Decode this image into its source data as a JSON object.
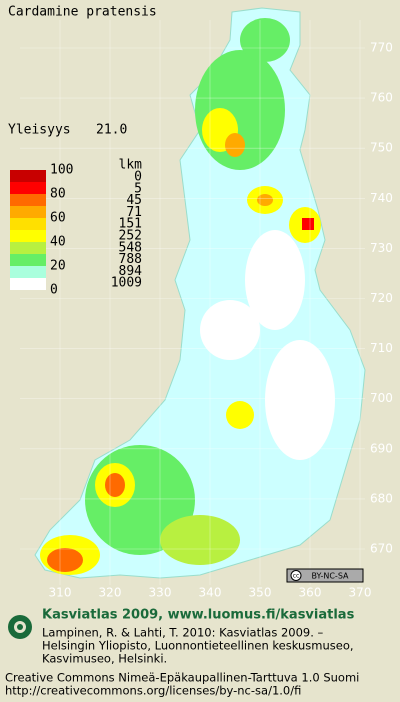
{
  "title": "Cardamine pratensis",
  "prevalence": {
    "label": "Yleisyys",
    "value": "21.0"
  },
  "legend": {
    "percent_labels": [
      100,
      80,
      60,
      40,
      20,
      0
    ],
    "count_header": "lkm",
    "counts": [
      0,
      5,
      45,
      71,
      151,
      252,
      548,
      788,
      894,
      1009
    ],
    "colors": [
      "#c80000",
      "#ff0000",
      "#ff6a00",
      "#ffaa00",
      "#ffe000",
      "#ffff00",
      "#b8f040",
      "#66ee66",
      "#aaffdd",
      "#ffffff"
    ]
  },
  "grid": {
    "northing": [
      770,
      760,
      750,
      740,
      730,
      720,
      710,
      700,
      690,
      680,
      670
    ],
    "easting": [
      310,
      320,
      330,
      340,
      350,
      360,
      370
    ]
  },
  "badge": "BY-NC-SA",
  "footer": {
    "heading": "Kasviatlas 2009, www.luomus.fi/kasviatlas",
    "citation": [
      "Lampinen, R. & Lahti, T. 2010: Kasviatlas 2009. –",
      "Helsingin Yliopisto, Luonnontieteellinen keskusmuseo,",
      "Kasvimuseo, Helsinki."
    ],
    "license": [
      "Creative Commons Nimeä-Epäkaupallinen-Tarttuva 1.0 Suomi",
      "http://creativecommons.org/licenses/by-nc-sa/1.0/fi"
    ]
  }
}
